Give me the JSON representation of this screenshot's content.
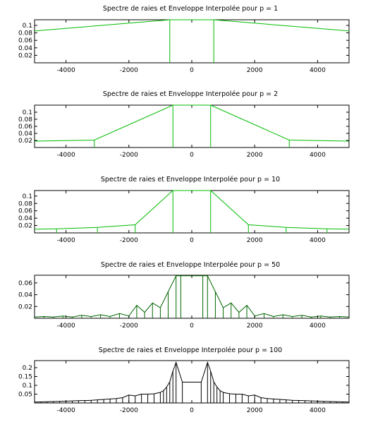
{
  "chart_data": [
    {
      "type": "line",
      "title": "Spectre de raies et Enveloppe Interpolée pour p = 1",
      "xlim": [
        -5000,
        5000
      ],
      "ylim": [
        0,
        0.115
      ],
      "x_ticks": [
        -4000,
        -2000,
        0,
        2000,
        4000
      ],
      "x_tick_labels": [
        "-4000",
        "-2000",
        "0",
        "2000",
        "4000"
      ],
      "y_ticks": [
        0.02,
        0.04,
        0.06,
        0.08,
        0.1
      ],
      "y_tick_labels": [
        "0.02",
        "0.04",
        "0.06",
        "0.08",
        "0.1"
      ],
      "color": "#00bb00",
      "lines": [
        -700,
        700
      ],
      "envelope": {
        "x": [
          -5000,
          -700,
          700,
          5000
        ],
        "y": [
          0.085,
          0.117,
          0.117,
          0.085
        ]
      }
    },
    {
      "type": "line",
      "title": "Spectre de raies et Enveloppe Interpolée pour p = 2",
      "xlim": [
        -5000,
        5000
      ],
      "ylim": [
        0,
        0.12
      ],
      "x_ticks": [
        -4000,
        -2000,
        0,
        2000,
        4000
      ],
      "x_tick_labels": [
        "-4000",
        "-2000",
        "0",
        "2000",
        "4000"
      ],
      "y_ticks": [
        0.02,
        0.04,
        0.06,
        0.08,
        0.1
      ],
      "y_tick_labels": [
        "0.02",
        "0.04",
        "0.06",
        "0.08",
        "0.1"
      ],
      "color": "#00bb00",
      "lines": [
        -3100,
        -600,
        600,
        3100
      ],
      "envelope": {
        "x": [
          -5000,
          -3100,
          -600,
          600,
          3100,
          5000
        ],
        "y": [
          0.018,
          0.021,
          0.12,
          0.12,
          0.021,
          0.018
        ]
      }
    },
    {
      "type": "line",
      "title": "Spectre de raies et Enveloppe Interpolée pour p = 10",
      "xlim": [
        -5000,
        5000
      ],
      "ylim": [
        0,
        0.115
      ],
      "x_ticks": [
        -4000,
        -2000,
        0,
        2000,
        4000
      ],
      "x_tick_labels": [
        "-4000",
        "-2000",
        "0",
        "2000",
        "4000"
      ],
      "y_ticks": [
        0.02,
        0.04,
        0.06,
        0.08,
        0.1
      ],
      "y_tick_labels": [
        "0.02",
        "0.04",
        "0.06",
        "0.08",
        "0.1"
      ],
      "color": "#00bb00",
      "lines": [
        -4300,
        -3000,
        -1800,
        -600,
        600,
        1800,
        3000,
        4300
      ],
      "envelope": {
        "x": [
          -5000,
          -4300,
          -3000,
          -1800,
          -600,
          600,
          1800,
          3000,
          4300,
          5000
        ],
        "y": [
          0.01,
          0.011,
          0.015,
          0.022,
          0.117,
          0.117,
          0.022,
          0.015,
          0.011,
          0.01
        ]
      }
    },
    {
      "type": "line",
      "title": "Spectre de raies et Enveloppe Interpolée pour p = 50",
      "xlim": [
        -5000,
        5000
      ],
      "ylim": [
        0,
        0.073
      ],
      "x_ticks": [
        -4000,
        -2000,
        0,
        2000,
        4000
      ],
      "x_tick_labels": [
        "-4000",
        "-2000",
        "0",
        "2000",
        "4000"
      ],
      "y_ticks": [
        0.02,
        0.04,
        0.06
      ],
      "y_tick_labels": [
        "0.02",
        "0.04",
        "0.06"
      ],
      "color": "#006600",
      "lines": [
        -4700,
        -4400,
        -4100,
        -3800,
        -3500,
        -3200,
        -2900,
        -2600,
        -2300,
        -2000,
        -1750,
        -1500,
        -1250,
        -1000,
        -750,
        -500,
        -350,
        350,
        500,
        750,
        1000,
        1250,
        1500,
        1750,
        2000,
        2300,
        2600,
        2900,
        3200,
        3500,
        3800,
        4100,
        4400,
        4700
      ],
      "envelope": {
        "x": [
          -5000,
          -4700,
          -4400,
          -4100,
          -3800,
          -3500,
          -3200,
          -2900,
          -2600,
          -2300,
          -2000,
          -1750,
          -1500,
          -1250,
          -1000,
          -750,
          -500,
          -350,
          350,
          500,
          750,
          1000,
          1250,
          1500,
          1750,
          2000,
          2300,
          2600,
          2900,
          3200,
          3500,
          3800,
          4100,
          4400,
          4700,
          5000
        ],
        "y": [
          0.002,
          0.003,
          0.002,
          0.004,
          0.002,
          0.005,
          0.003,
          0.006,
          0.003,
          0.008,
          0.004,
          0.022,
          0.01,
          0.026,
          0.018,
          0.045,
          0.072,
          0.072,
          0.072,
          0.072,
          0.045,
          0.018,
          0.026,
          0.01,
          0.022,
          0.004,
          0.008,
          0.003,
          0.006,
          0.003,
          0.005,
          0.002,
          0.004,
          0.002,
          0.003,
          0.002
        ]
      }
    },
    {
      "type": "line",
      "title": "Spectre de raies et Enveloppe Interpolée pour p = 100",
      "xlim": [
        -5000,
        5000
      ],
      "ylim": [
        0,
        0.24
      ],
      "x_ticks": [
        -4000,
        -2000,
        0,
        2000,
        4000
      ],
      "x_tick_labels": [
        "-4000",
        "-2000",
        "0",
        "2000",
        "4000"
      ],
      "y_ticks": [
        0.05,
        0.1,
        0.15,
        0.2
      ],
      "y_tick_labels": [
        "0.05",
        "0.1",
        "0.15",
        "0.2"
      ],
      "color": "#000000",
      "lines": [
        -4800,
        -4600,
        -4400,
        -4200,
        -4000,
        -3800,
        -3600,
        -3400,
        -3200,
        -3000,
        -2800,
        -2600,
        -2400,
        -2200,
        -2000,
        -1800,
        -1600,
        -1400,
        -1200,
        -1000,
        -900,
        -800,
        -700,
        -600,
        -500,
        -300,
        300,
        500,
        600,
        700,
        800,
        900,
        1000,
        1200,
        1400,
        1600,
        1800,
        2000,
        2200,
        2400,
        2600,
        2800,
        3000,
        3200,
        3400,
        3600,
        3800,
        4000,
        4200,
        4400,
        4600,
        4800
      ],
      "envelope": {
        "x": [
          -5000,
          -4800,
          -4400,
          -4000,
          -3600,
          -3200,
          -2800,
          -2400,
          -2200,
          -2000,
          -1800,
          -1600,
          -1400,
          -1200,
          -1000,
          -900,
          -800,
          -700,
          -600,
          -500,
          -300,
          300,
          500,
          600,
          700,
          800,
          900,
          1000,
          1200,
          1400,
          1600,
          1800,
          2000,
          2200,
          2400,
          2800,
          3200,
          3600,
          4000,
          4400,
          4800,
          5000
        ],
        "y": [
          0.005,
          0.006,
          0.008,
          0.01,
          0.013,
          0.015,
          0.02,
          0.025,
          0.03,
          0.045,
          0.04,
          0.05,
          0.05,
          0.052,
          0.06,
          0.07,
          0.09,
          0.12,
          0.18,
          0.23,
          0.118,
          0.118,
          0.23,
          0.18,
          0.12,
          0.09,
          0.07,
          0.06,
          0.052,
          0.05,
          0.05,
          0.04,
          0.045,
          0.03,
          0.025,
          0.02,
          0.015,
          0.013,
          0.01,
          0.008,
          0.006,
          0.005
        ]
      }
    }
  ]
}
